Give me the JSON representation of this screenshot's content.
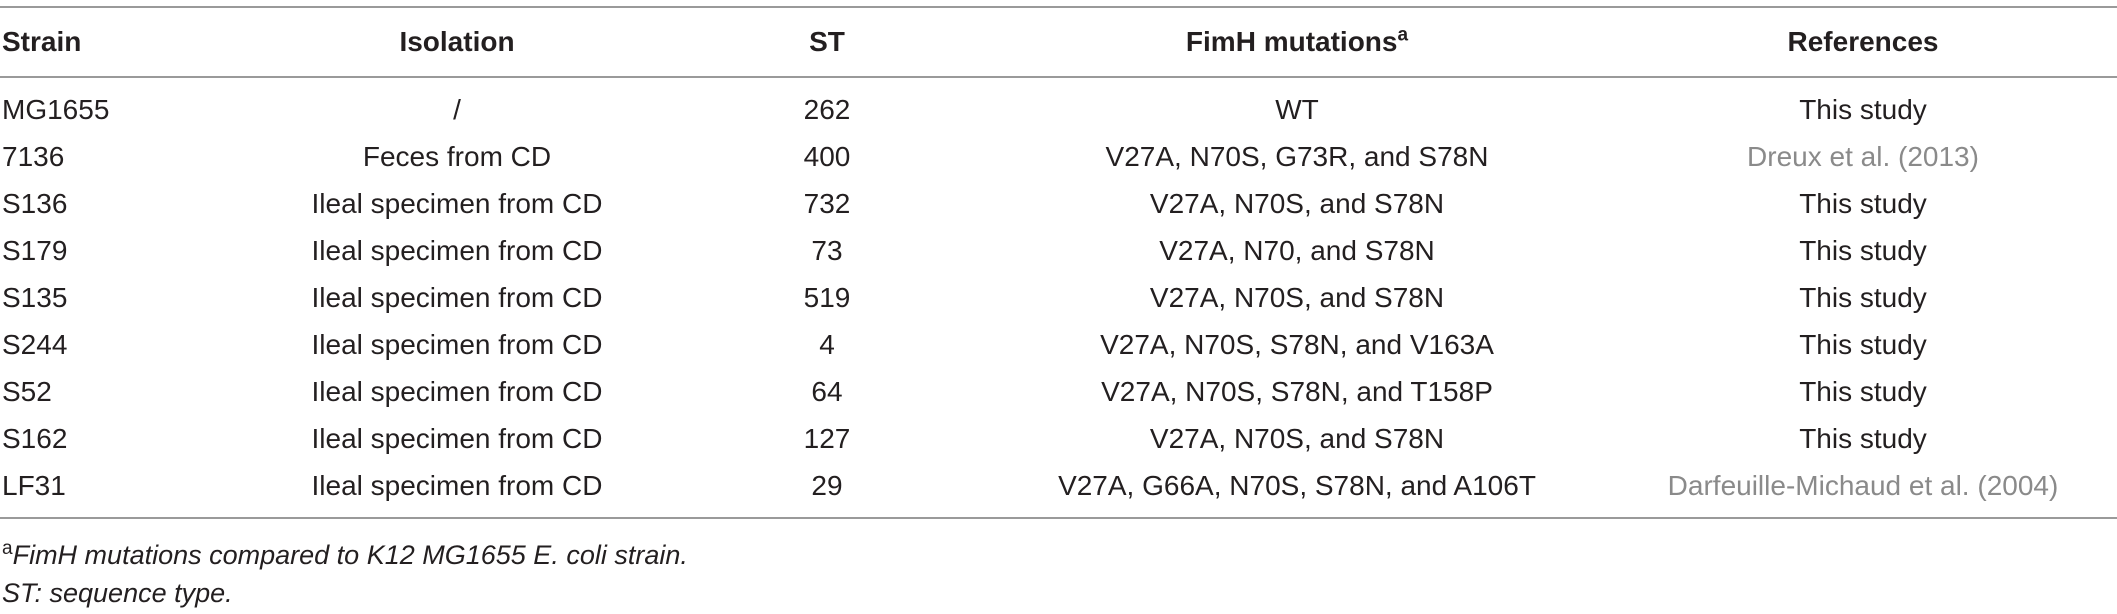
{
  "table": {
    "headers": {
      "strain": "Strain",
      "isolation": "Isolation",
      "st": "ST",
      "fimh": "FimH mutations",
      "fimh_sup": "a",
      "references": "References"
    },
    "rows": [
      {
        "strain": "MG1655",
        "isolation": "/",
        "st": "262",
        "fimh": "WT",
        "ref": "This study",
        "ref_link": false
      },
      {
        "strain": "7136",
        "isolation": "Feces from CD",
        "st": "400",
        "fimh": "V27A, N70S, G73R, and S78N",
        "ref": "Dreux et al. (2013)",
        "ref_link": true
      },
      {
        "strain": "S136",
        "isolation": "Ileal specimen from CD",
        "st": "732",
        "fimh": "V27A, N70S, and S78N",
        "ref": "This study",
        "ref_link": false
      },
      {
        "strain": "S179",
        "isolation": "Ileal specimen from CD",
        "st": "73",
        "fimh": "V27A, N70, and S78N",
        "ref": "This study",
        "ref_link": false
      },
      {
        "strain": "S135",
        "isolation": "Ileal specimen from CD",
        "st": "519",
        "fimh": "V27A, N70S, and S78N",
        "ref": "This study",
        "ref_link": false
      },
      {
        "strain": "S244",
        "isolation": "Ileal specimen from CD",
        "st": "4",
        "fimh": "V27A, N70S, S78N, and V163A",
        "ref": "This study",
        "ref_link": false
      },
      {
        "strain": "S52",
        "isolation": "Ileal specimen from CD",
        "st": "64",
        "fimh": "V27A, N70S, S78N, and T158P",
        "ref": "This study",
        "ref_link": false
      },
      {
        "strain": "S162",
        "isolation": "Ileal specimen from CD",
        "st": "127",
        "fimh": "V27A, N70S, and S78N",
        "ref": "This study",
        "ref_link": false
      },
      {
        "strain": "LF31",
        "isolation": "Ileal specimen from CD",
        "st": "29",
        "fimh": "V27A, G66A, N70S, S78N, and A106T",
        "ref": "Darfeuille-Michaud et al. (2004)",
        "ref_link": true
      }
    ]
  },
  "footnotes": {
    "a_mark": "a",
    "a_text": "FimH mutations compared to K12 MG1655 E. coli strain.",
    "st_text": "ST: sequence type."
  },
  "colors": {
    "text": "#231f20",
    "reference_link": "#8a8a8a",
    "rule": "#9a9a9a"
  }
}
